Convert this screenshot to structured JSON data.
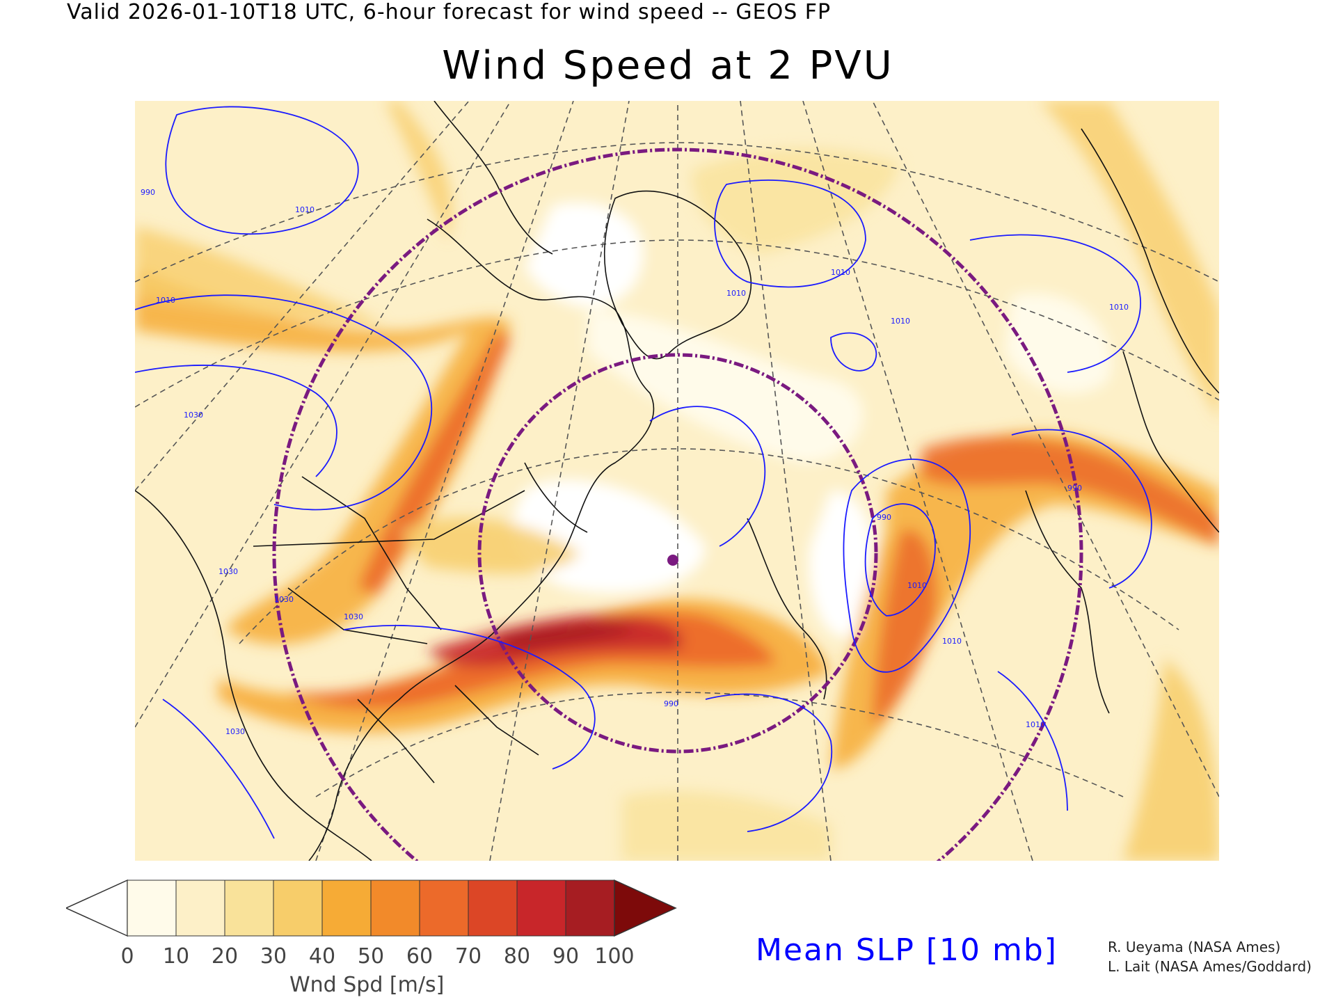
{
  "header": {
    "valid_line": "Valid 2026-01-10T18 UTC, 6-hour forecast for wind speed -- GEOS FP",
    "title": "Wind Speed at 2 PVU"
  },
  "colorbar": {
    "label": "Wnd Spd [m/s]",
    "ticks": [
      "0",
      "10",
      "20",
      "30",
      "40",
      "50",
      "60",
      "70",
      "80",
      "90",
      "100"
    ],
    "colors": [
      "#ffffff",
      "#fffbea",
      "#fdf0c8",
      "#f9e29a",
      "#f7cd6a",
      "#f6ab36",
      "#f28a2a",
      "#ec6a2a",
      "#dc4626",
      "#c8262a",
      "#a61d22",
      "#7d0a0a"
    ]
  },
  "map": {
    "contour_color": "#0000ff",
    "ring_color": "#7a1a80",
    "contour_labels": [
      "990",
      "1010",
      "1010",
      "1030",
      "1030",
      "1010",
      "1010",
      "990",
      "1010",
      "1030",
      "1030",
      "1030",
      "990",
      "1010",
      "990",
      "1010",
      "1010",
      "1010"
    ],
    "marker_color": "#7a1a80"
  },
  "legend": {
    "contour": "Mean SLP [10 mb]"
  },
  "credits": {
    "line1": "R. Ueyama (NASA Ames)",
    "line2": "L. Lait (NASA Ames/Goddard)"
  }
}
